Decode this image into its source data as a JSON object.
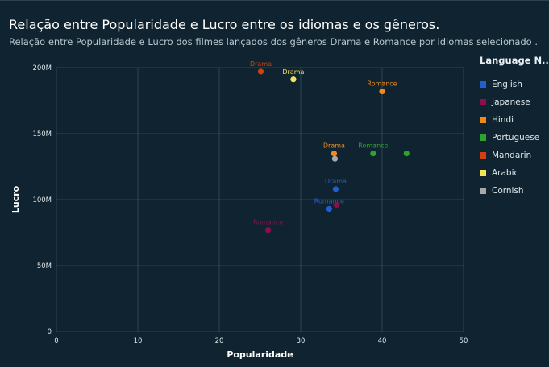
{
  "header": {
    "title": "Relação entre Popularidade e Lucro entre os idiomas e os gêneros.",
    "subtitle": "Relação entre Popularidade e Lucro dos filmes lançados dos gêneros Drama e Romance por idiomas selecionado ."
  },
  "chart_data": {
    "type": "scatter",
    "title": "Relação entre Popularidade e Lucro entre os idiomas e os gêneros.",
    "subtitle": "Relação entre Popularidade e Lucro dos filmes lançados dos gêneros Drama e Romance por idiomas selecionado .",
    "xlabel": "Popularidade",
    "ylabel": "Lucro",
    "xlim": [
      0,
      50
    ],
    "ylim": [
      0,
      200000000
    ],
    "x_ticks": [
      0,
      10,
      20,
      30,
      40,
      50
    ],
    "x_tick_labels": [
      "0",
      "10",
      "20",
      "30",
      "40",
      "50"
    ],
    "y_ticks": [
      0,
      50000000,
      100000000,
      150000000,
      200000000
    ],
    "y_tick_labels": [
      "0",
      "50M",
      "100M",
      "150M",
      "200M"
    ],
    "grid": true,
    "legend_title": "Language N...",
    "legend_position": "right",
    "series": [
      {
        "name": "English",
        "color": "#1f5fd1",
        "points": [
          {
            "x": 34.3,
            "y": 108000000,
            "label": "Drama"
          },
          {
            "x": 33.5,
            "y": 93000000,
            "label": "Romance"
          }
        ]
      },
      {
        "name": "Japanese",
        "color": "#8c0f4a",
        "points": [
          {
            "x": 34.4,
            "y": 96000000,
            "label": ""
          },
          {
            "x": 26.0,
            "y": 77000000,
            "label": "Romance"
          }
        ]
      },
      {
        "name": "Hindi",
        "color": "#f08a1c",
        "points": [
          {
            "x": 34.1,
            "y": 135000000,
            "label": "Drama"
          },
          {
            "x": 40.0,
            "y": 182000000,
            "label": "Romance"
          }
        ]
      },
      {
        "name": "Portuguese",
        "color": "#2ca32c",
        "points": [
          {
            "x": 38.9,
            "y": 135000000,
            "label": "Romance"
          },
          {
            "x": 43.0,
            "y": 135000000,
            "label": ""
          }
        ]
      },
      {
        "name": "Mandarin",
        "color": "#d4400f",
        "points": [
          {
            "x": 25.1,
            "y": 197000000,
            "label": "Drama"
          }
        ]
      },
      {
        "name": "Arabic",
        "color": "#f2e35a",
        "points": [
          {
            "x": 29.1,
            "y": 191000000,
            "label": "Drama"
          }
        ]
      },
      {
        "name": "Cornish",
        "color": "#a8a8a8",
        "points": [
          {
            "x": 34.2,
            "y": 131000000,
            "label": ""
          }
        ]
      }
    ]
  }
}
